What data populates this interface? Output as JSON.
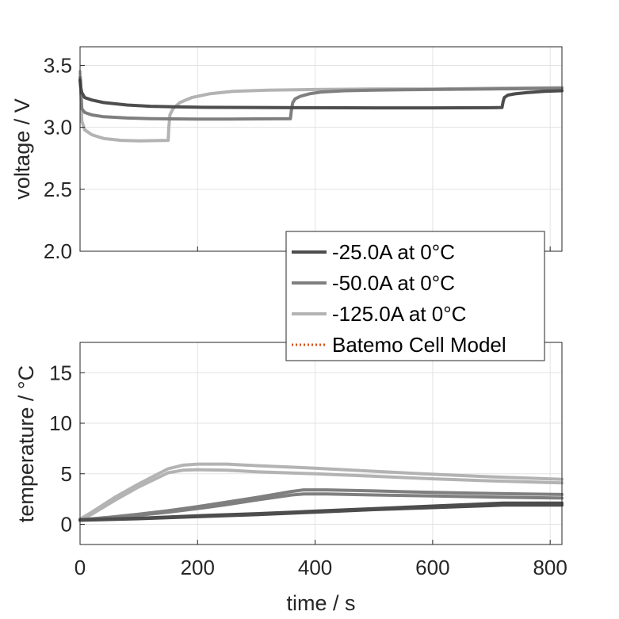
{
  "chart_data": [
    {
      "type": "line",
      "id": "voltage",
      "xlabel": "",
      "ylabel": "voltage / V",
      "xlim": [
        0,
        820
      ],
      "ylim": [
        2.0,
        3.65
      ],
      "xticks": [
        0,
        200,
        400,
        600,
        800
      ],
      "yticks": [
        2.0,
        2.5,
        3.0,
        3.5
      ],
      "ytick_labels": [
        "2.0",
        "2.5",
        "3.0",
        "3.5"
      ],
      "grid": true,
      "legend": {
        "placement": "bottom-right",
        "entries": [
          {
            "label": "-25.0A at 0°C",
            "color": "#4d4d4d",
            "style": "solid"
          },
          {
            "label": "-50.0A at 0°C",
            "color": "#7f7f7f",
            "style": "solid"
          },
          {
            "label": "-125.0A at 0°C",
            "color": "#b3b3b3",
            "style": "solid"
          },
          {
            "label": "Batemo Cell Model",
            "color": "#d95319",
            "style": "dotted"
          }
        ]
      },
      "series": [
        {
          "name": "-125.0A at 0°C",
          "color": "#b3b3b3",
          "x": [
            0,
            1,
            3,
            8,
            20,
            40,
            70,
            100,
            130,
            150,
            151,
            153,
            158,
            170,
            190,
            220,
            260,
            320,
            400,
            500,
            600,
            700,
            820
          ],
          "y": [
            3.45,
            3.38,
            3.05,
            2.98,
            2.94,
            2.91,
            2.895,
            2.89,
            2.893,
            2.895,
            3.0,
            3.1,
            3.15,
            3.2,
            3.24,
            3.27,
            3.29,
            3.3,
            3.305,
            3.31,
            3.31,
            3.315,
            3.32
          ]
        },
        {
          "name": "-50.0A at 0°C",
          "color": "#7f7f7f",
          "x": [
            0,
            1,
            3,
            8,
            20,
            40,
            80,
            120,
            160,
            200,
            250,
            300,
            358,
            360,
            362,
            366,
            375,
            390,
            410,
            450,
            500,
            600,
            700,
            820
          ],
          "y": [
            3.4,
            3.35,
            3.15,
            3.12,
            3.1,
            3.085,
            3.075,
            3.07,
            3.068,
            3.067,
            3.067,
            3.068,
            3.07,
            3.15,
            3.2,
            3.23,
            3.25,
            3.27,
            3.285,
            3.295,
            3.3,
            3.305,
            3.31,
            3.315
          ]
        },
        {
          "name": "-25.0A at 0°C",
          "color": "#4d4d4d",
          "x": [
            0,
            1,
            3,
            8,
            20,
            40,
            80,
            120,
            160,
            200,
            300,
            400,
            500,
            600,
            700,
            718,
            720,
            722,
            728,
            740,
            760,
            790,
            820
          ],
          "y": [
            3.38,
            3.33,
            3.28,
            3.24,
            3.22,
            3.2,
            3.18,
            3.17,
            3.165,
            3.162,
            3.16,
            3.158,
            3.157,
            3.157,
            3.158,
            3.16,
            3.21,
            3.24,
            3.26,
            3.27,
            3.28,
            3.29,
            3.295
          ]
        }
      ]
    },
    {
      "type": "line",
      "id": "temperature",
      "xlabel": "time / s",
      "ylabel": "temperature / °C",
      "xlim": [
        0,
        820
      ],
      "ylim": [
        -2,
        18
      ],
      "xticks": [
        0,
        200,
        400,
        600,
        800
      ],
      "yticks": [
        0,
        5,
        10,
        15
      ],
      "ytick_labels": [
        "0",
        "5",
        "10",
        "15"
      ],
      "grid": true,
      "series": [
        {
          "name": "-125.0A at 0°C",
          "color": "#b3b3b3",
          "x": [
            0,
            20,
            60,
            100,
            150,
            175,
            200,
            250,
            300,
            400,
            500,
            600,
            700,
            820
          ],
          "y": [
            0.5,
            1.2,
            2.7,
            4.0,
            5.5,
            5.85,
            5.95,
            5.95,
            5.8,
            5.55,
            5.25,
            4.95,
            4.7,
            4.45
          ]
        },
        {
          "name": "-125.0A at 0°C",
          "color": "#b3b3b3",
          "x": [
            0,
            20,
            60,
            100,
            150,
            175,
            200,
            250,
            300,
            400,
            500,
            600,
            700,
            820
          ],
          "y": [
            0.4,
            1.0,
            2.4,
            3.7,
            5.1,
            5.35,
            5.4,
            5.35,
            5.2,
            5.0,
            4.75,
            4.5,
            4.3,
            4.1
          ]
        },
        {
          "name": "-50.0A at 0°C",
          "color": "#7f7f7f",
          "x": [
            0,
            50,
            100,
            150,
            200,
            250,
            300,
            360,
            380,
            420,
            500,
            600,
            700,
            820
          ],
          "y": [
            0.45,
            0.7,
            1.0,
            1.35,
            1.75,
            2.2,
            2.65,
            3.25,
            3.4,
            3.4,
            3.3,
            3.15,
            3.05,
            2.95
          ]
        },
        {
          "name": "-50.0A at 0°C",
          "color": "#7f7f7f",
          "x": [
            0,
            50,
            100,
            150,
            200,
            250,
            300,
            360,
            380,
            420,
            500,
            600,
            700,
            820
          ],
          "y": [
            0.4,
            0.6,
            0.9,
            1.2,
            1.55,
            1.95,
            2.4,
            2.9,
            3.0,
            3.0,
            2.9,
            2.8,
            2.7,
            2.6
          ]
        },
        {
          "name": "-25.0A at 0°C",
          "color": "#4d4d4d",
          "x": [
            0,
            100,
            200,
            300,
            400,
            500,
            600,
            700,
            720,
            820
          ],
          "y": [
            0.45,
            0.6,
            0.85,
            1.05,
            1.3,
            1.55,
            1.8,
            2.05,
            2.1,
            2.1
          ]
        },
        {
          "name": "-25.0A at 0°C",
          "color": "#4d4d4d",
          "x": [
            0,
            100,
            200,
            300,
            400,
            500,
            600,
            700,
            720,
            820
          ],
          "y": [
            0.4,
            0.55,
            0.75,
            0.95,
            1.2,
            1.45,
            1.65,
            1.85,
            1.9,
            1.9
          ]
        }
      ]
    }
  ]
}
